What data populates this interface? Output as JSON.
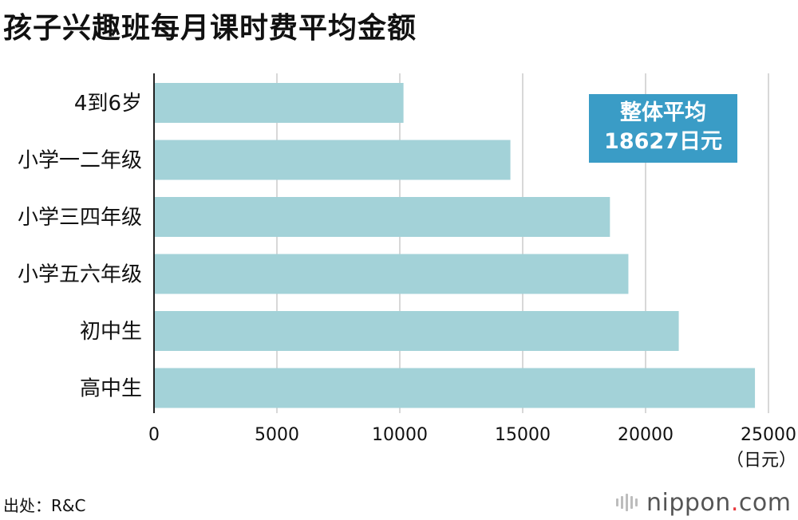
{
  "title": "孩子兴趣班每月课时费平均金额",
  "average_box": {
    "line1": "整体平均",
    "line2": "18627日元"
  },
  "source": "出处：R&C",
  "logo": {
    "name": "nippon",
    "dot": ".",
    "suffix": "com"
  },
  "colors": {
    "bar": "#a3d2d8",
    "avg_box": "#3a9cc6",
    "grid": "#cccccc",
    "axis": "#222222"
  },
  "chart_data": {
    "type": "bar",
    "orientation": "horizontal",
    "categories": [
      "4到6岁",
      "小学一二年级",
      "小学三四年级",
      "小学五六年级",
      "初中生",
      "高中生"
    ],
    "values": [
      10150,
      14500,
      18550,
      19300,
      21350,
      24450
    ],
    "xlim": [
      0,
      25000
    ],
    "xticks": [
      0,
      5000,
      10000,
      15000,
      20000,
      25000
    ],
    "xunit": "（日元）",
    "grid": true,
    "legend": "none"
  }
}
